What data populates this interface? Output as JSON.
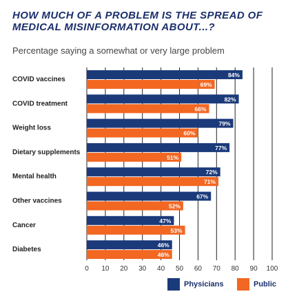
{
  "title": "HOW MUCH OF A PROBLEM IS THE SPREAD OF MEDICAL MISINFORMATION ABOUT...?",
  "subtitle": "Percentage saying a somewhat or very large problem",
  "colors": {
    "physicians": "#1b3a7a",
    "public": "#f26722",
    "title": "#1b2f6b",
    "grid": "#222222"
  },
  "legend": {
    "physicians": "Physicians",
    "public": "Public"
  },
  "chart_data": {
    "type": "bar",
    "orientation": "horizontal",
    "categories": [
      "COVID vaccines",
      "COVID treatment",
      "Weight loss",
      "Dietary supplements",
      "Mental health",
      "Other vaccines",
      "Cancer",
      "Diabetes"
    ],
    "series": [
      {
        "name": "Physicians",
        "values": [
          84,
          82,
          79,
          77,
          72,
          67,
          47,
          46
        ],
        "labels": [
          "84%",
          "82%",
          "79%",
          "77%",
          "72%",
          "67%",
          "47%",
          "46%"
        ]
      },
      {
        "name": "Public",
        "values": [
          69,
          66,
          60,
          51,
          71,
          52,
          53,
          46
        ],
        "labels": [
          "69%",
          "66%",
          "60%",
          "51%",
          "71%",
          "52%",
          "53%",
          "46%"
        ]
      }
    ],
    "xlim": [
      0,
      100
    ],
    "xticks": [
      "0",
      "10",
      "20",
      "30",
      "40",
      "50",
      "60",
      "70",
      "80",
      "90",
      "100"
    ],
    "grid": true,
    "legend_position": "bottom-right"
  }
}
